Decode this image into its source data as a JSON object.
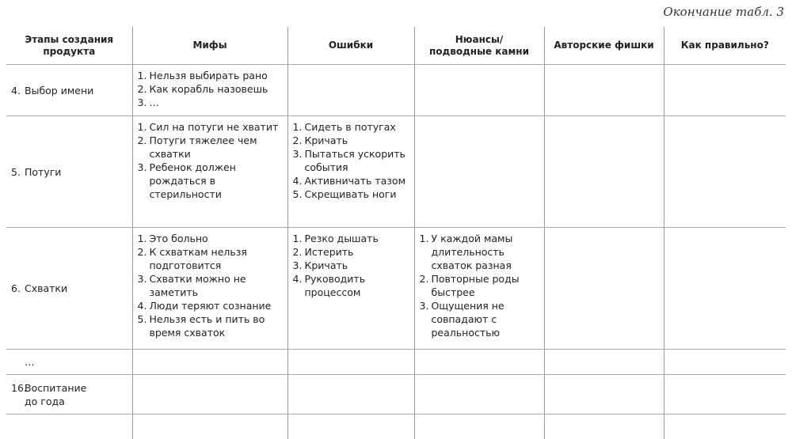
{
  "caption": "Окончание табл. 3",
  "columns": [
    "Этапы создания продукта",
    "Мифы",
    "Ошибки",
    "Нюансы/подводные камни",
    "Авторские фишки",
    "Как правильно?"
  ],
  "rows": [
    {
      "stage_num": "4.",
      "stage": "Выбор имени",
      "myths": [
        "Нельзя выбирать рано",
        "Как корабль назовешь",
        "…"
      ],
      "errors": [],
      "nuances": []
    },
    {
      "stage_num": "5.",
      "stage": "Потуги",
      "myths": [
        "Сил на потуги не хватит",
        "Потуги тяжелее чем схватки",
        "Ребенок должен рождаться в стерильности"
      ],
      "errors": [
        "Сидеть в потугах",
        "Кричать",
        "Пытаться ускорить события",
        "Активничать тазом",
        "Скрещивать ноги"
      ],
      "nuances": []
    },
    {
      "stage_num": "6.",
      "stage": "Схватки",
      "myths": [
        "Это больно",
        "К схваткам нельзя подготовится",
        "Схватки можно не заметить",
        "Люди теряют сознание",
        "Нельзя есть и пить во время схваток"
      ],
      "errors": [
        "Резко дышать",
        "Истерить",
        "Кричать",
        "Руководить процессом"
      ],
      "nuances": [
        "У каждой мамы длительность схваток разная",
        "Повторные роды быстрее",
        "Ощущения не совпадают с реальностью"
      ]
    },
    {
      "stage_num": "",
      "stage": "…",
      "myths": [],
      "errors": [],
      "nuances": []
    },
    {
      "stage_num": "16.",
      "stage": "Воспитание до года",
      "myths": [],
      "errors": [],
      "nuances": []
    }
  ]
}
